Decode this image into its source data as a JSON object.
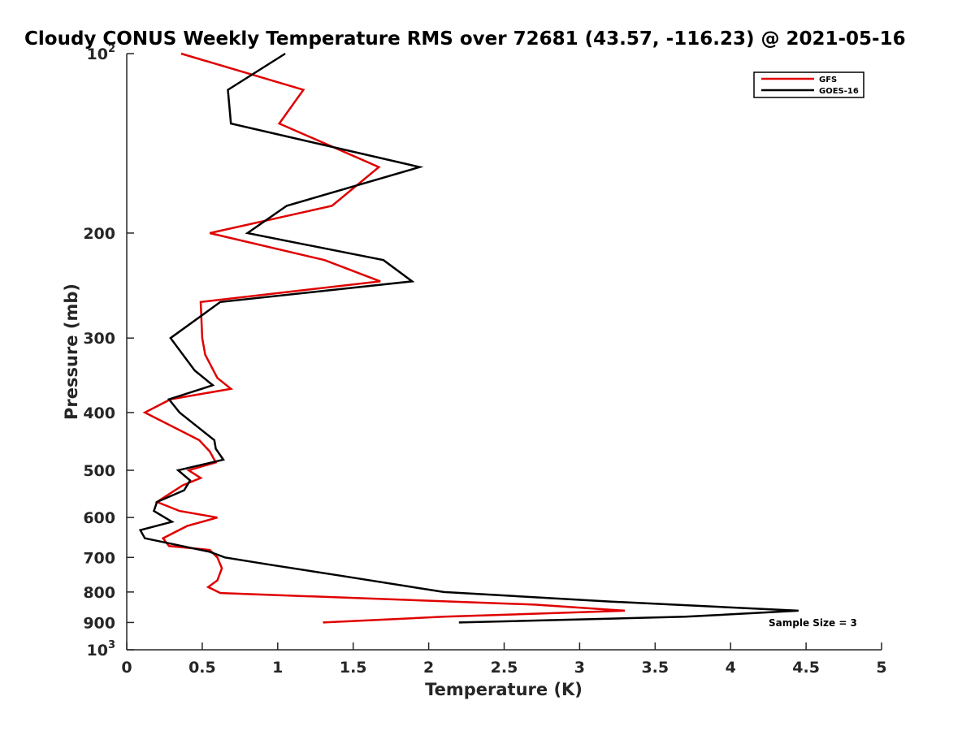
{
  "chart_data": {
    "type": "line",
    "title": "Cloudy CONUS Weekly Temperature RMS over 72681 (43.57, -116.23) @ 2021-05-16",
    "xlabel": "Temperature (K)",
    "ylabel": "Pressure (mb)",
    "xlim": [
      0,
      5
    ],
    "ylim": [
      100,
      1000
    ],
    "y_scale": "log",
    "y_reversed": true,
    "grid": false,
    "legend_position": "top-right",
    "x_ticks": [
      {
        "value": 0,
        "label": "0"
      },
      {
        "value": 0.5,
        "label": "0.5"
      },
      {
        "value": 1,
        "label": "1"
      },
      {
        "value": 1.5,
        "label": "1.5"
      },
      {
        "value": 2,
        "label": "2"
      },
      {
        "value": 2.5,
        "label": "2.5"
      },
      {
        "value": 3,
        "label": "3"
      },
      {
        "value": 3.5,
        "label": "3.5"
      },
      {
        "value": 4,
        "label": "4"
      },
      {
        "value": 4.5,
        "label": "4.5"
      },
      {
        "value": 5,
        "label": "5"
      }
    ],
    "y_ticks": [
      {
        "value": 100,
        "base": "10",
        "exp": "2"
      },
      {
        "value": 200,
        "label": "200"
      },
      {
        "value": 300,
        "label": "300"
      },
      {
        "value": 400,
        "label": "400"
      },
      {
        "value": 500,
        "label": "500"
      },
      {
        "value": 600,
        "label": "600"
      },
      {
        "value": 700,
        "label": "700"
      },
      {
        "value": 800,
        "label": "800"
      },
      {
        "value": 900,
        "label": "900"
      },
      {
        "value": 1000,
        "base": "10",
        "exp": "3"
      }
    ],
    "series": [
      {
        "name": "GFS",
        "color": "#e00000",
        "points": [
          [
            0.36,
            100
          ],
          [
            1.17,
            115
          ],
          [
            1.01,
            131
          ],
          [
            1.67,
            155
          ],
          [
            1.36,
            180
          ],
          [
            0.55,
            200
          ],
          [
            1.31,
            222
          ],
          [
            1.68,
            241
          ],
          [
            0.49,
            261
          ],
          [
            0.5,
            300
          ],
          [
            0.52,
            320
          ],
          [
            0.6,
            350
          ],
          [
            0.69,
            365
          ],
          [
            0.29,
            380
          ],
          [
            0.12,
            400
          ],
          [
            0.48,
            445
          ],
          [
            0.55,
            465
          ],
          [
            0.59,
            485
          ],
          [
            0.41,
            500
          ],
          [
            0.49,
            515
          ],
          [
            0.37,
            530
          ],
          [
            0.2,
            565
          ],
          [
            0.35,
            585
          ],
          [
            0.6,
            600
          ],
          [
            0.4,
            620
          ],
          [
            0.24,
            650
          ],
          [
            0.28,
            670
          ],
          [
            0.55,
            680
          ],
          [
            0.6,
            700
          ],
          [
            0.63,
            730
          ],
          [
            0.6,
            765
          ],
          [
            0.54,
            785
          ],
          [
            0.62,
            803
          ],
          [
            2.7,
            840
          ],
          [
            3.3,
            860
          ],
          [
            2.1,
            880
          ],
          [
            1.3,
            900
          ]
        ]
      },
      {
        "name": "GOES-16",
        "color": "#000000",
        "points": [
          [
            1.05,
            100
          ],
          [
            0.67,
            115
          ],
          [
            0.69,
            131
          ],
          [
            1.94,
            155
          ],
          [
            1.06,
            180
          ],
          [
            0.8,
            200
          ],
          [
            1.7,
            222
          ],
          [
            1.89,
            241
          ],
          [
            0.62,
            261
          ],
          [
            0.29,
            300
          ],
          [
            0.45,
            340
          ],
          [
            0.57,
            360
          ],
          [
            0.28,
            380
          ],
          [
            0.35,
            400
          ],
          [
            0.58,
            445
          ],
          [
            0.59,
            460
          ],
          [
            0.64,
            480
          ],
          [
            0.34,
            500
          ],
          [
            0.42,
            520
          ],
          [
            0.38,
            540
          ],
          [
            0.2,
            565
          ],
          [
            0.18,
            585
          ],
          [
            0.3,
            610
          ],
          [
            0.09,
            630
          ],
          [
            0.12,
            650
          ],
          [
            0.55,
            685
          ],
          [
            0.65,
            700
          ],
          [
            0.95,
            720
          ],
          [
            1.4,
            750
          ],
          [
            2.1,
            800
          ],
          [
            3.2,
            830
          ],
          [
            4.45,
            860
          ],
          [
            3.7,
            880
          ],
          [
            2.2,
            900
          ]
        ]
      }
    ],
    "annotation": "Sample Size = 3"
  }
}
